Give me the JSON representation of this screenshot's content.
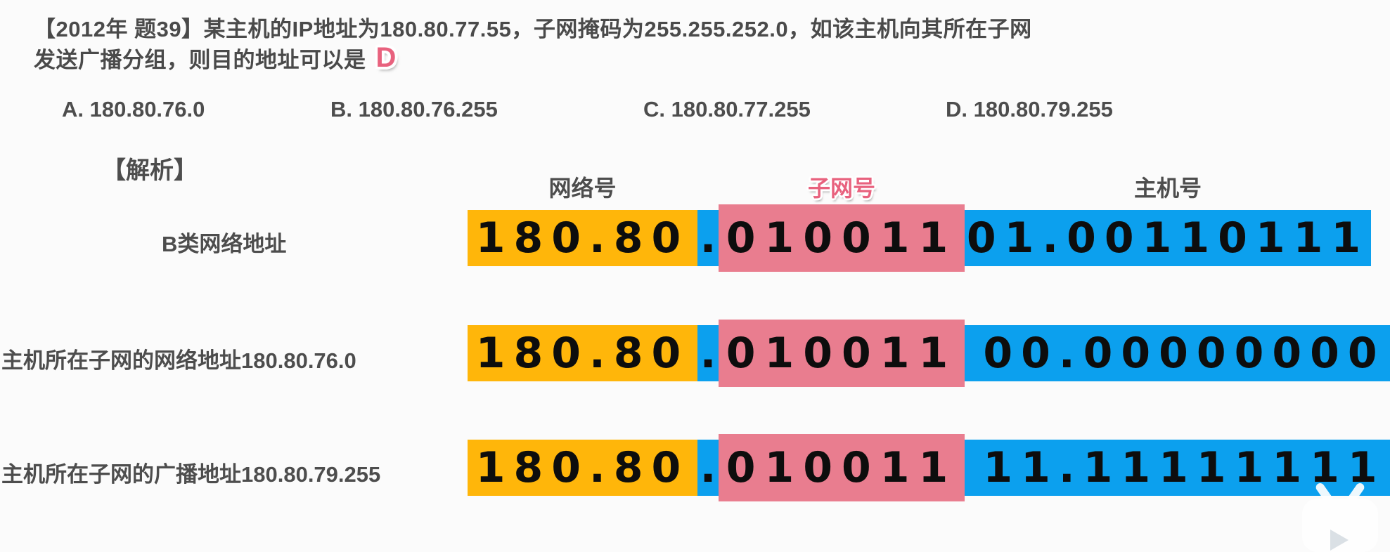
{
  "question": {
    "title_line1": "【2012年 题39】某主机的IP地址为180.80.77.55，子网掩码为255.255.252.0，如该主机向其所在子网",
    "title_line2": "发送广播分组，则目的地址可以是",
    "answer_badge": "D",
    "options": [
      {
        "label": "A. 180.80.76.0"
      },
      {
        "label": "B. 180.80.76.255"
      },
      {
        "label": "C. 180.80.77.255"
      },
      {
        "label": "D. 180.80.79.255"
      }
    ]
  },
  "analysis": {
    "heading": "【解析】",
    "column_headers": {
      "network": "网络号",
      "subnet": "子网号",
      "host": "主机号"
    },
    "rows": [
      {
        "label": "B类网络地址",
        "network": "180.80",
        "dot": ".",
        "subnet": "010011",
        "host": "01.00110111"
      },
      {
        "label": "主机所在子网的网络地址180.80.76.0",
        "network": "180.80",
        "dot": ".",
        "subnet": "010011",
        "host": "00.00000000"
      },
      {
        "label": "主机所在子网的广播地址180.80.79.255",
        "network": "180.80",
        "dot": ".",
        "subnet": "010011",
        "host": "11.11111111"
      }
    ]
  },
  "colors": {
    "network_orange": "#FFB60A",
    "subnet_pink": "#E97D8F",
    "host_blue": "#0CA0EE",
    "accent_pink_text": "#E8627E",
    "body_text_gray": "#4D4D4D",
    "digit_black": "#0D0D0D"
  },
  "watermark": {
    "icon_name": "tv-logo"
  }
}
